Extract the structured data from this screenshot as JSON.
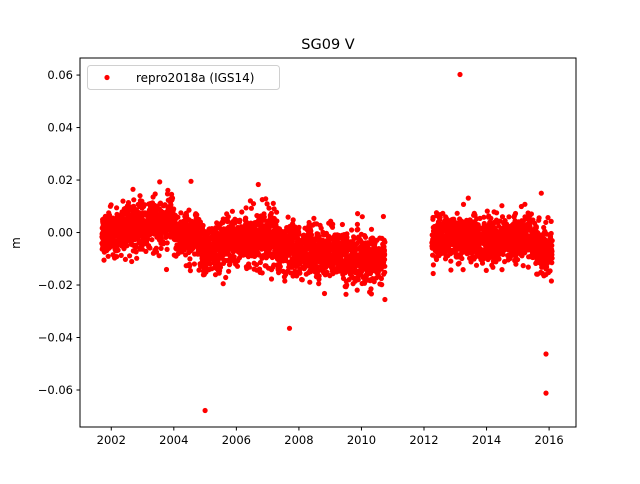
{
  "chart_data": {
    "type": "scatter",
    "title": "SG09 V",
    "xlabel": "",
    "ylabel": "m",
    "xlim": [
      2001.0,
      2016.86
    ],
    "ylim": [
      -0.0741,
      0.0665
    ],
    "xticks": [
      2002,
      2004,
      2006,
      2008,
      2010,
      2012,
      2014,
      2016
    ],
    "xtick_labels": [
      "2002",
      "2004",
      "2006",
      "2008",
      "2010",
      "2012",
      "2014",
      "2016"
    ],
    "yticks": [
      0.06,
      0.04,
      0.02,
      0.0,
      -0.02,
      -0.04,
      -0.06
    ],
    "ytick_labels": [
      "0.06",
      "0.04",
      "0.02",
      "0.00",
      "−0.02",
      "−0.04",
      "−0.06"
    ],
    "grid": false,
    "legend": {
      "placement": "top-left",
      "entries": [
        "repro2018a (IGS14)"
      ]
    },
    "series": [
      {
        "name": "repro2018a (IGS14)",
        "color": "#ff0000",
        "marker": "circle",
        "sampling_per_year": 365,
        "segments": [
          {
            "x": [
              2001.7,
              2002.5
            ],
            "mean": 0.0,
            "spread": 0.004
          },
          {
            "x": [
              2002.5,
              2003.2
            ],
            "mean": 0.002,
            "spread": 0.0045
          },
          {
            "x": [
              2003.2,
              2004.0
            ],
            "mean": 0.004,
            "spread": 0.0045
          },
          {
            "x": [
              2004.0,
              2004.8
            ],
            "mean": -0.001,
            "spread": 0.004
          },
          {
            "x": [
              2004.8,
              2005.6
            ],
            "mean": -0.006,
            "spread": 0.0045
          },
          {
            "x": [
              2005.6,
              2006.5
            ],
            "mean": -0.003,
            "spread": 0.0045
          },
          {
            "x": [
              2006.5,
              2007.3
            ],
            "mean": -0.002,
            "spread": 0.005
          },
          {
            "x": [
              2007.3,
              2008.5
            ],
            "mean": -0.007,
            "spread": 0.0045
          },
          {
            "x": [
              2008.5,
              2009.5
            ],
            "mean": -0.008,
            "spread": 0.0045
          },
          {
            "x": [
              2009.5,
              2010.75
            ],
            "mean": -0.01,
            "spread": 0.0045
          },
          {
            "x": [
              2012.25,
              2013.5
            ],
            "mean": -0.002,
            "spread": 0.004
          },
          {
            "x": [
              2013.5,
              2014.8
            ],
            "mean": -0.003,
            "spread": 0.004
          },
          {
            "x": [
              2014.8,
              2015.6
            ],
            "mean": -0.002,
            "spread": 0.004
          },
          {
            "x": [
              2015.6,
              2016.1
            ],
            "mean": -0.007,
            "spread": 0.0045
          }
        ],
        "outliers": [
          {
            "x": 2013.15,
            "y": 0.0602
          },
          {
            "x": 2005.0,
            "y": -0.0678
          },
          {
            "x": 2007.7,
            "y": -0.0365
          },
          {
            "x": 2015.9,
            "y": -0.0463
          },
          {
            "x": 2015.9,
            "y": -0.0612
          },
          {
            "x": 2015.75,
            "y": 0.015
          },
          {
            "x": 2010.75,
            "y": -0.0255
          },
          {
            "x": 2006.7,
            "y": 0.0183
          },
          {
            "x": 2003.55,
            "y": 0.0193
          },
          {
            "x": 2004.55,
            "y": 0.0195
          }
        ]
      }
    ]
  }
}
